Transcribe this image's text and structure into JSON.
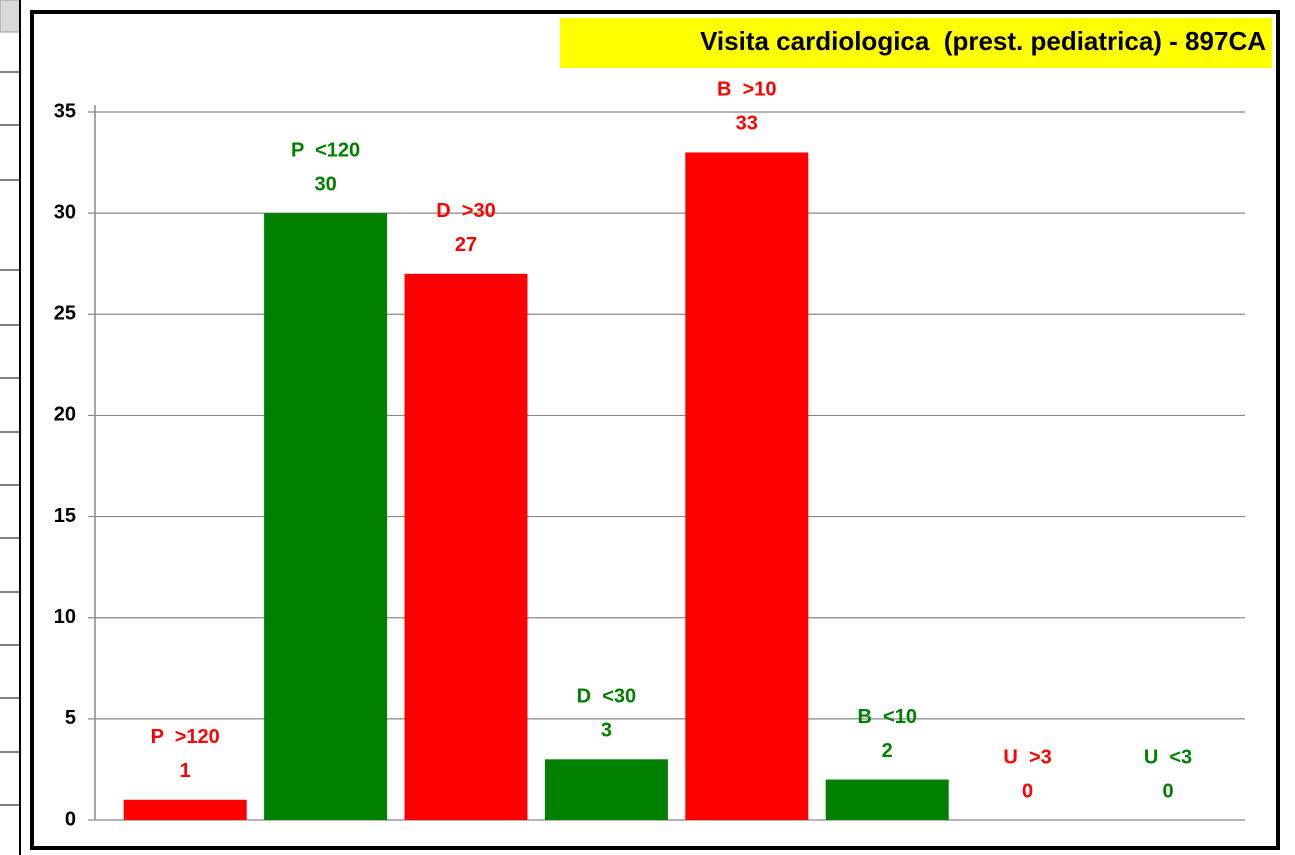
{
  "chart_data": {
    "type": "bar",
    "title": "Visita cardiologica  (prest. pediatrica) - 897CA",
    "categories": [
      "P  >120",
      "P  <120",
      "D  >30",
      "D  <30",
      "B  >10",
      "B  <10",
      "U  >3",
      "U  <3"
    ],
    "values": [
      1,
      30,
      27,
      3,
      33,
      2,
      0,
      0
    ],
    "colors": [
      "#ff0000",
      "#008000",
      "#ff0000",
      "#008000",
      "#ff0000",
      "#008000",
      "#ff0000",
      "#008000"
    ],
    "ylim": [
      0,
      35
    ],
    "yticks": [
      0,
      5,
      10,
      15,
      20,
      25,
      30,
      35
    ],
    "grid": true
  }
}
